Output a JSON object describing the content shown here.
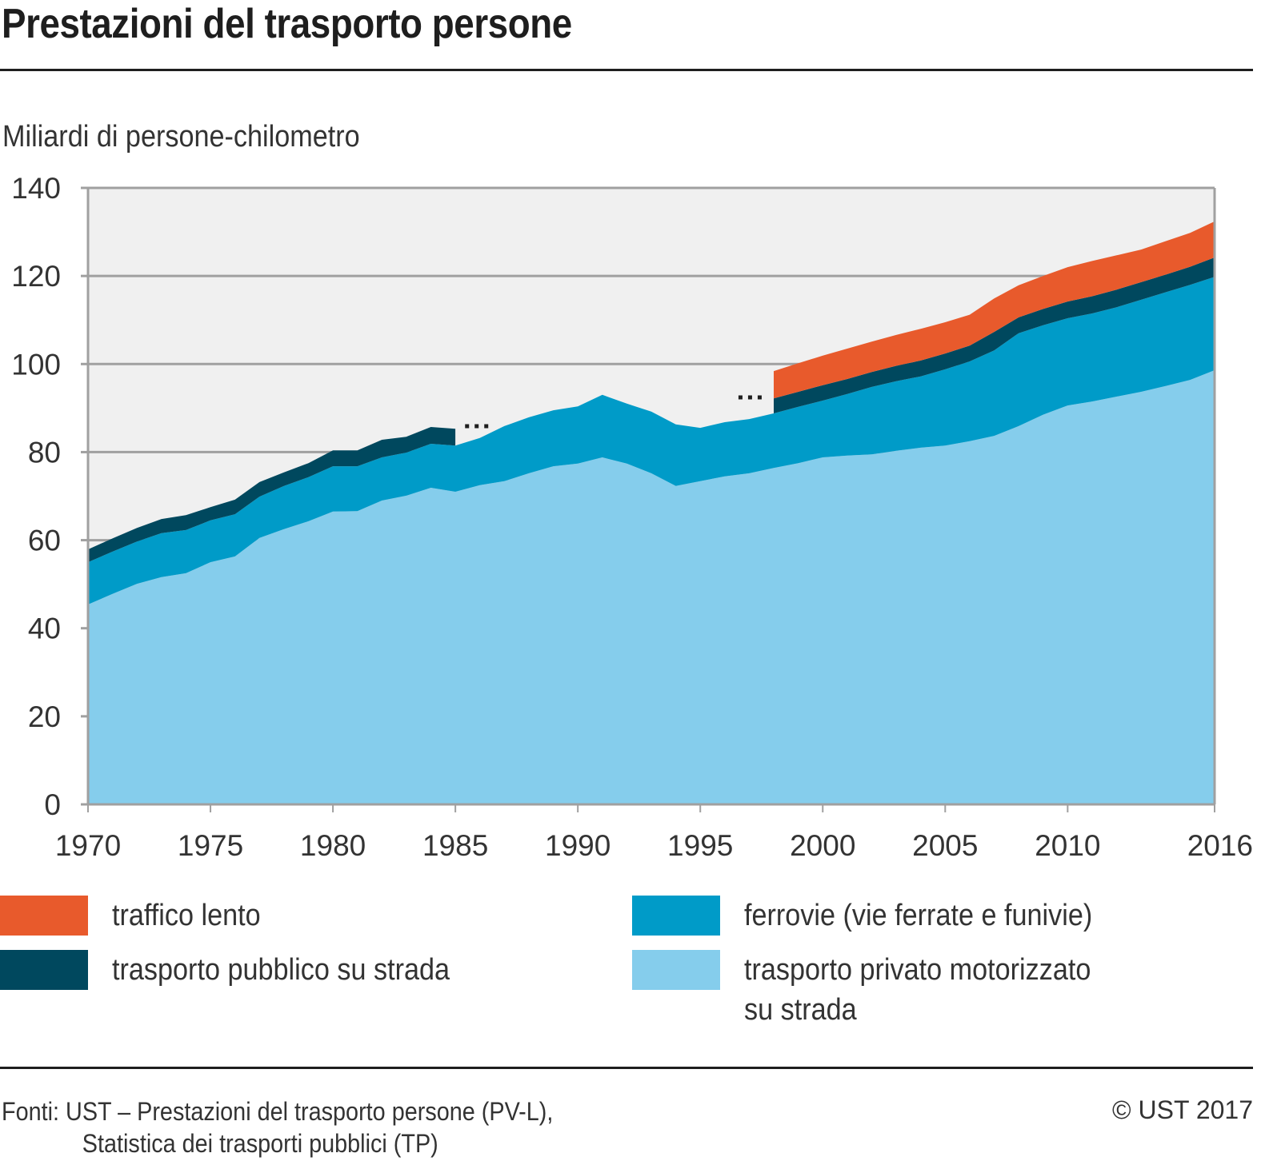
{
  "header": {
    "title": "Prestazioni del trasporto persone",
    "unit_label": "Miliardi di persone-chilometro"
  },
  "colors": {
    "plot_background": "#f0f0f0",
    "axis": "#a0a0a0",
    "traffico_lento": "#e85a2c",
    "trasporto_pubblico_su_strada": "#00485e",
    "ferrovie": "#009bc8",
    "trasporto_privato": "#85cdec",
    "gap_marker": "#1e1e1e"
  },
  "legend": {
    "items": [
      {
        "key": "traffico_lento",
        "label": "traffico lento"
      },
      {
        "key": "trasporto_pubblico_su_strada",
        "label": "trasporto pubblico su strada"
      },
      {
        "key": "ferrovie",
        "label": "ferrovie (vie ferrate e funivie)"
      },
      {
        "key": "trasporto_privato",
        "label_line1": "trasporto privato motorizzato",
        "label_line2": "su strada"
      }
    ]
  },
  "footer": {
    "source_line1": "Fonti: UST – Prestazioni del trasporto persone (PV-L),",
    "source_line2": "Statistica dei trasporti pubblici (TP)",
    "copyright": "© UST 2017"
  },
  "chart_data": {
    "type": "area",
    "stacked": true,
    "title": "Prestazioni del trasporto persone",
    "ylabel": "Miliardi di persone-chilometro",
    "xlabel": "",
    "ylim": [
      0,
      140
    ],
    "xlim": [
      1970,
      2016
    ],
    "y_ticks": [
      0,
      20,
      40,
      60,
      80,
      100,
      120,
      140
    ],
    "x_ticks": [
      1970,
      1975,
      1980,
      1985,
      1990,
      1995,
      2000,
      2005,
      2010,
      2016
    ],
    "grid": false,
    "legend_position": "bottom",
    "gap_marker": "...",
    "gap_markers_at": [
      {
        "after_year": 1985,
        "series": "trasporto pubblico su strada"
      },
      {
        "before_year": 1998,
        "series": "trasporto pubblico su strada / traffico lento"
      }
    ],
    "x": [
      1970,
      1971,
      1972,
      1973,
      1974,
      1975,
      1976,
      1977,
      1978,
      1979,
      1980,
      1981,
      1982,
      1983,
      1984,
      1985,
      1986,
      1987,
      1988,
      1989,
      1990,
      1991,
      1992,
      1993,
      1994,
      1995,
      1996,
      1997,
      1998,
      1999,
      2000,
      2001,
      2002,
      2003,
      2004,
      2005,
      2006,
      2007,
      2008,
      2009,
      2010,
      2011,
      2012,
      2013,
      2014,
      2015,
      2016
    ],
    "series": [
      {
        "name": "trasporto privato motorizzato su strada",
        "key": "trasporto_privato",
        "values": [
          45.4,
          47.8,
          50.1,
          51.6,
          52.5,
          55.0,
          56.3,
          60.5,
          62.5,
          64.3,
          66.5,
          66.6,
          69.0,
          70.1,
          71.9,
          71.0,
          72.5,
          73.4,
          75.2,
          76.8,
          77.4,
          78.8,
          77.4,
          75.2,
          72.3,
          73.4,
          74.5,
          75.2,
          76.4,
          77.5,
          78.8,
          79.2,
          79.5,
          80.3,
          81.0,
          81.5,
          82.5,
          83.7,
          85.9,
          88.5,
          90.6,
          91.5,
          92.6,
          93.7,
          95.0,
          96.4,
          98.6
        ]
      },
      {
        "name": "ferrovie (vie ferrate e funivie)",
        "key": "ferrovie",
        "values": [
          9.6,
          9.6,
          9.6,
          10.0,
          9.8,
          9.5,
          9.6,
          9.4,
          9.8,
          10.0,
          10.3,
          10.2,
          9.8,
          9.8,
          10.0,
          10.5,
          10.7,
          12.5,
          12.7,
          12.7,
          13.0,
          14.2,
          13.6,
          14.0,
          14.0,
          12.1,
          12.3,
          12.3,
          12.4,
          12.8,
          12.9,
          14.0,
          15.3,
          15.8,
          16.2,
          17.3,
          18.1,
          19.4,
          21.1,
          20.3,
          19.8,
          20.0,
          20.3,
          20.9,
          21.3,
          21.6,
          21.2
        ]
      },
      {
        "name": "trasporto pubblico su strada",
        "key": "trasporto_pubblico_su_strada",
        "values": [
          2.9,
          3.0,
          3.1,
          3.2,
          3.4,
          3.0,
          3.3,
          3.3,
          3.1,
          3.2,
          3.6,
          3.6,
          4.0,
          3.6,
          3.8,
          3.8,
          null,
          null,
          null,
          null,
          null,
          null,
          null,
          null,
          null,
          null,
          null,
          null,
          3.4,
          3.4,
          3.5,
          3.4,
          3.4,
          3.5,
          3.6,
          3.6,
          3.6,
          4.2,
          3.6,
          3.7,
          3.8,
          3.9,
          4.0,
          4.0,
          4.0,
          4.1,
          4.4
        ]
      },
      {
        "name": "traffico lento",
        "key": "traffico_lento",
        "values": [
          null,
          null,
          null,
          null,
          null,
          null,
          null,
          null,
          null,
          null,
          null,
          null,
          null,
          null,
          null,
          null,
          null,
          null,
          null,
          null,
          null,
          null,
          null,
          null,
          null,
          null,
          null,
          null,
          6.2,
          6.5,
          6.7,
          6.9,
          6.9,
          7.0,
          7.2,
          7.1,
          7.0,
          7.6,
          7.3,
          7.5,
          7.8,
          8.0,
          7.8,
          7.4,
          7.6,
          7.7,
          8.2
        ]
      }
    ]
  }
}
